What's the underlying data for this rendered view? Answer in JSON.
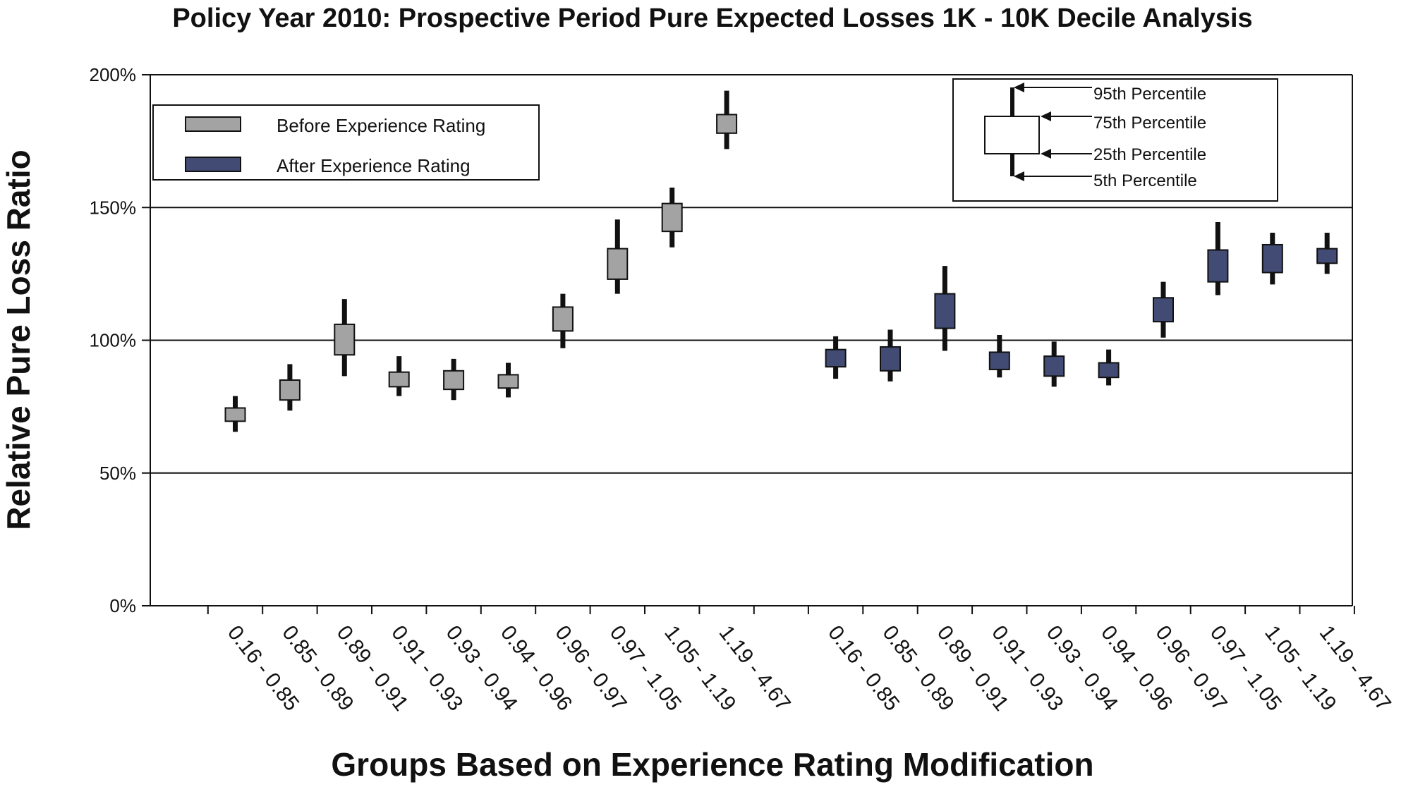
{
  "chart_data": {
    "type": "boxplot",
    "title": "Policy Year 2010: Prospective Period Pure Expected Losses 1K - 10K Decile Analysis",
    "xlabel": "Groups Based on Experience Rating Modification",
    "ylabel": "Relative Pure Loss Ratio",
    "ylim": [
      0,
      200
    ],
    "yticks": [
      "0%",
      "50%",
      "100%",
      "150%",
      "200%"
    ],
    "ytick_values": [
      0,
      50,
      100,
      150,
      200
    ],
    "gridlines": [
      50,
      100,
      150
    ],
    "categories": [
      "0.16 - 0.85",
      "0.85 - 0.89",
      "0.89 - 0.91",
      "0.91 - 0.93",
      "0.93 - 0.94",
      "0.94 - 0.96",
      "0.96 - 0.97",
      "0.97 - 1.05",
      "1.05 - 1.19",
      "1.19 - 4.67"
    ],
    "series": [
      {
        "name": "Before Experience Rating",
        "color": "#a3a3a3",
        "boxes": [
          {
            "p5": 65.5,
            "p25": 69.5,
            "p75": 74.5,
            "p95": 79
          },
          {
            "p5": 73.5,
            "p25": 77.5,
            "p75": 85,
            "p95": 91
          },
          {
            "p5": 86.5,
            "p25": 94.5,
            "p75": 106,
            "p95": 115.5
          },
          {
            "p5": 79,
            "p25": 82.5,
            "p75": 88,
            "p95": 94
          },
          {
            "p5": 77.5,
            "p25": 81.5,
            "p75": 88.5,
            "p95": 93
          },
          {
            "p5": 78.5,
            "p25": 82,
            "p75": 87,
            "p95": 91.5
          },
          {
            "p5": 97,
            "p25": 103.5,
            "p75": 112.5,
            "p95": 117.5
          },
          {
            "p5": 117.5,
            "p25": 123,
            "p75": 134.5,
            "p95": 145.5
          },
          {
            "p5": 135,
            "p25": 141,
            "p75": 151.5,
            "p95": 157.5
          },
          {
            "p5": 172,
            "p25": 178,
            "p75": 185,
            "p95": 194
          }
        ]
      },
      {
        "name": "After Experience Rating",
        "color": "#414b73",
        "boxes": [
          {
            "p5": 85.5,
            "p25": 90,
            "p75": 96.5,
            "p95": 101.5
          },
          {
            "p5": 84.5,
            "p25": 88.5,
            "p75": 97.5,
            "p95": 104
          },
          {
            "p5": 96,
            "p25": 104.5,
            "p75": 117.5,
            "p95": 128
          },
          {
            "p5": 86,
            "p25": 89,
            "p75": 95.5,
            "p95": 102
          },
          {
            "p5": 82.5,
            "p25": 86.5,
            "p75": 94,
            "p95": 99.5
          },
          {
            "p5": 83,
            "p25": 86,
            "p75": 91.5,
            "p95": 96.5
          },
          {
            "p5": 101,
            "p25": 107,
            "p75": 116,
            "p95": 122
          },
          {
            "p5": 117,
            "p25": 122,
            "p75": 134,
            "p95": 144.5
          },
          {
            "p5": 121,
            "p25": 125.5,
            "p75": 136,
            "p95": 140.5
          },
          {
            "p5": 125,
            "p25": 129,
            "p75": 134.5,
            "p95": 140.5
          }
        ]
      }
    ],
    "legend": {
      "placement": "top-left",
      "items": [
        "Before Experience Rating",
        "After Experience Rating"
      ]
    },
    "key": {
      "placement": "top-right",
      "labels": [
        "95th Percentile",
        "75th Percentile",
        "25th Percentile",
        "5th Percentile"
      ]
    }
  }
}
